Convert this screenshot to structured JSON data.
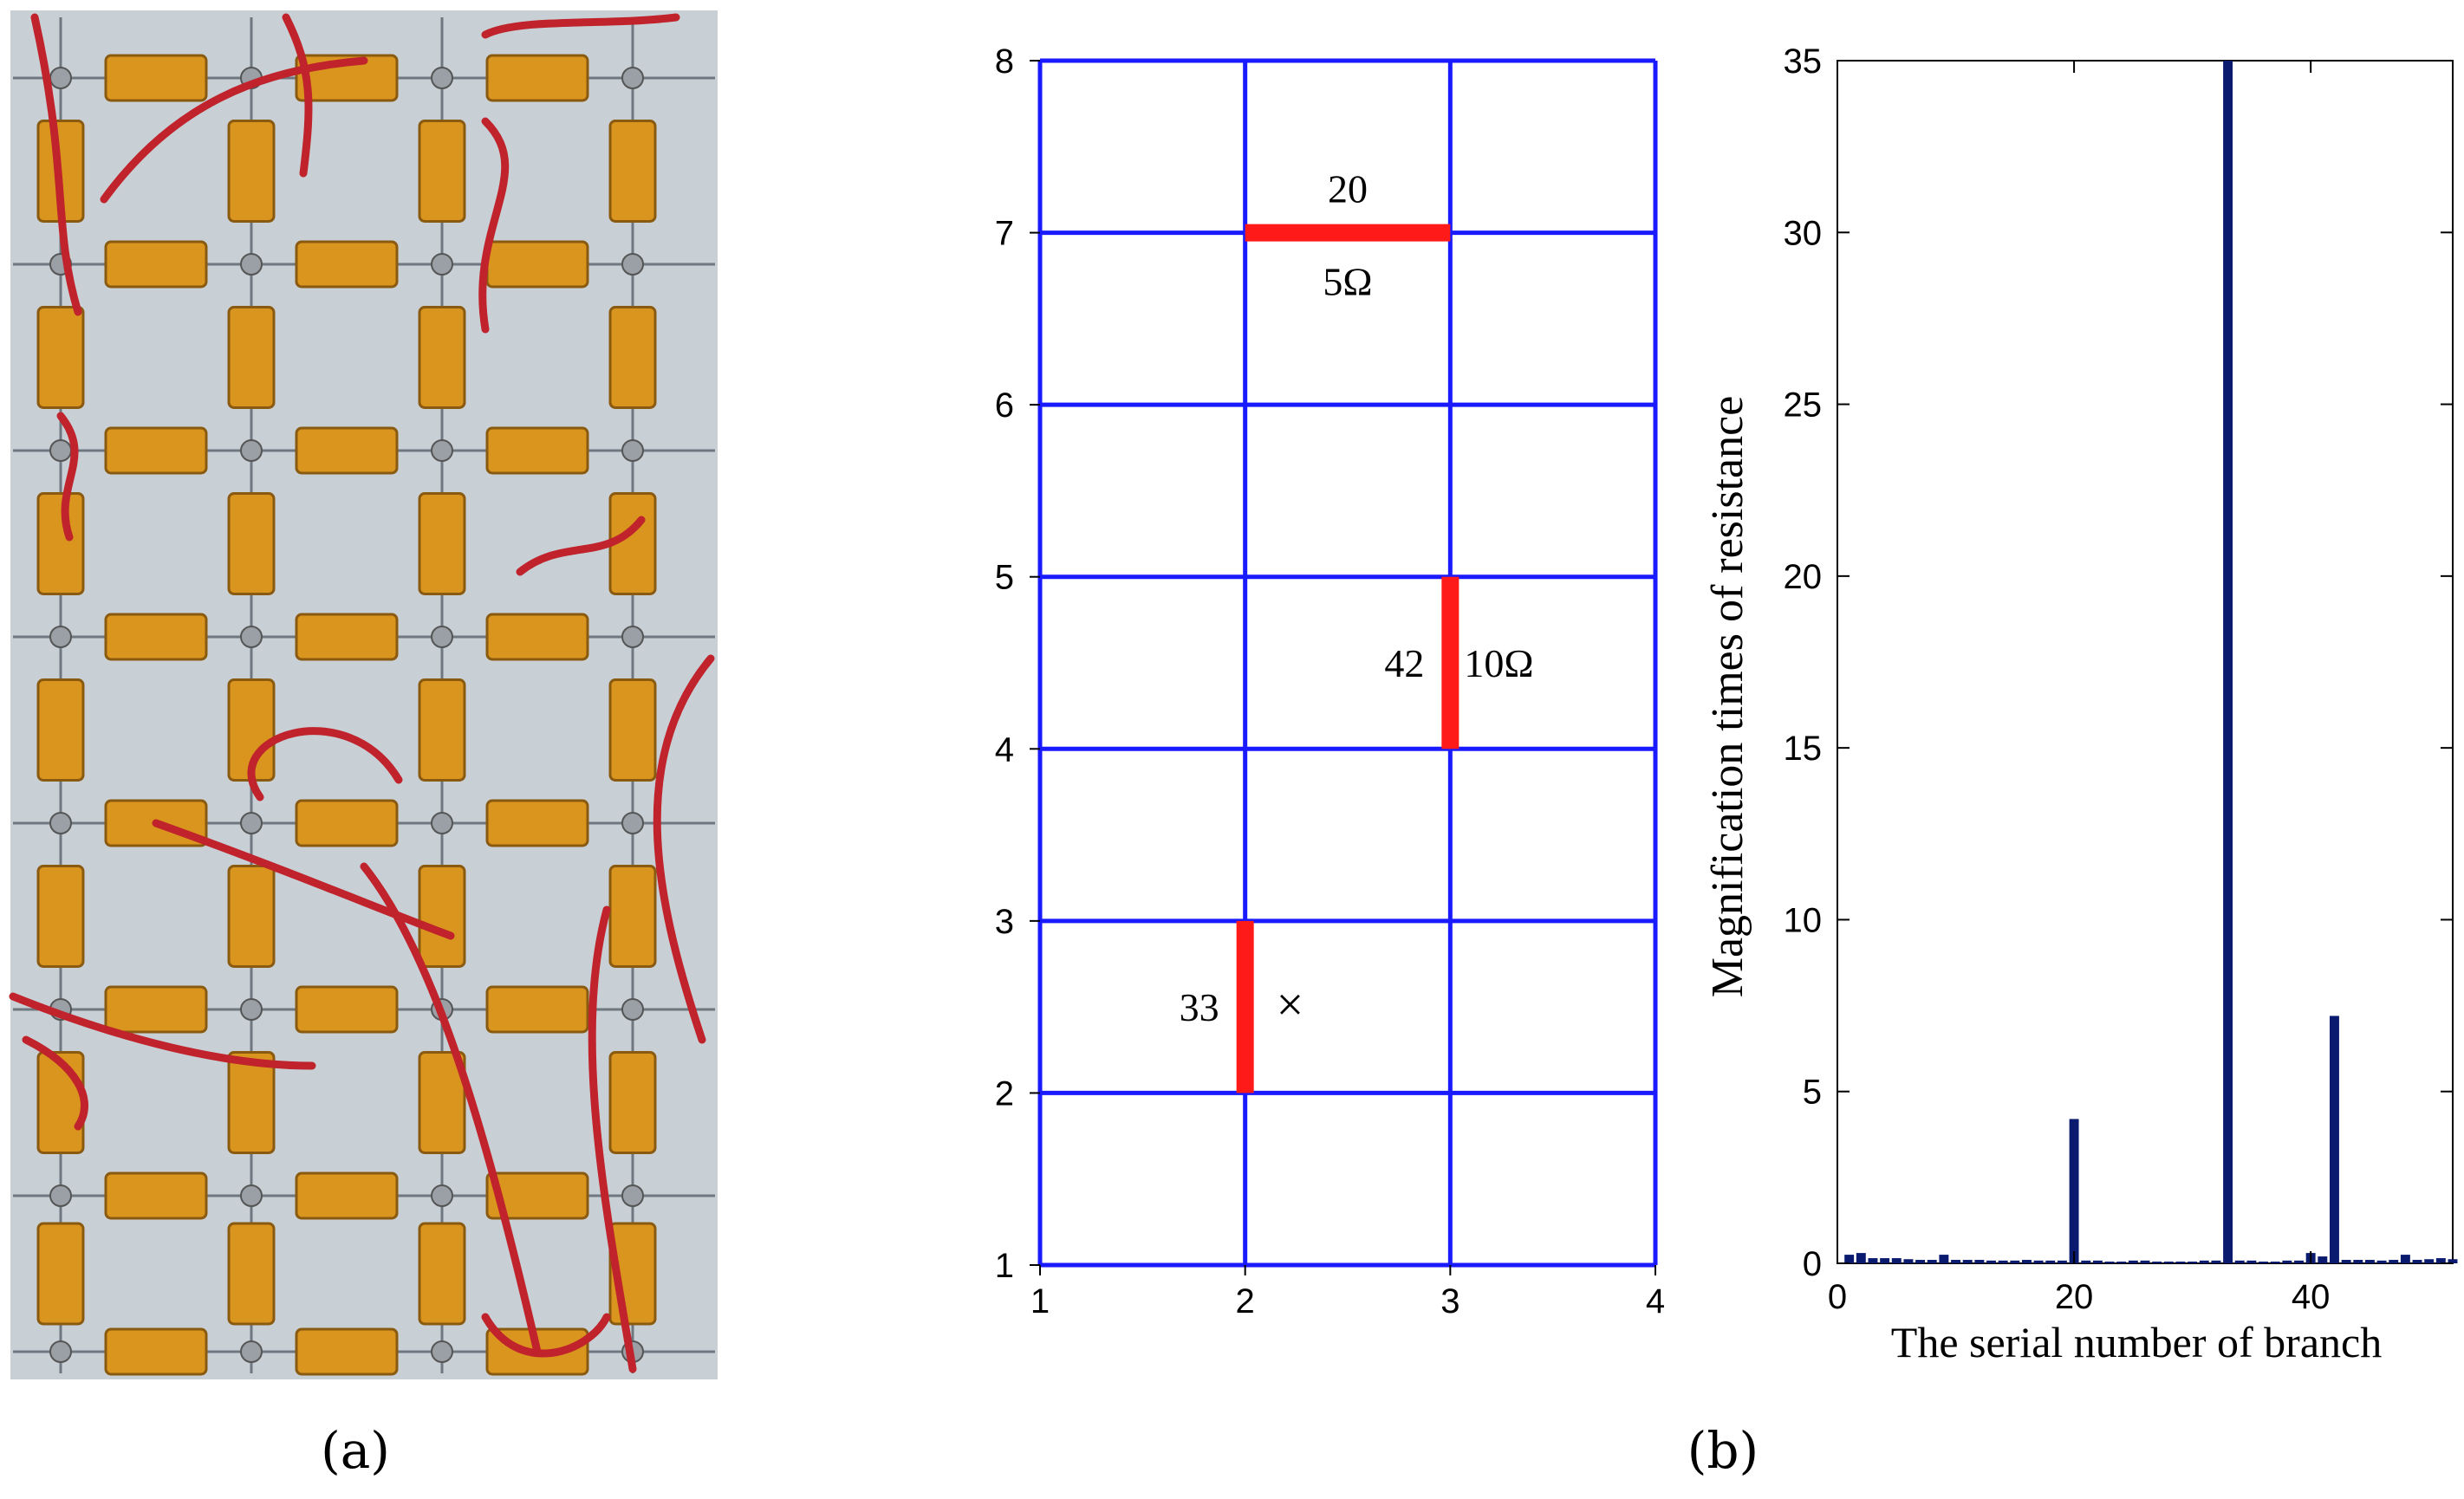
{
  "panel_labels": {
    "a": "(a)",
    "b": "(b)"
  },
  "photo": {
    "background": "#c8d0d6",
    "resistor_color": "#d9951e",
    "wire_color": "#c0232b"
  },
  "chart_data": [
    {
      "type": "network_grid",
      "xlim": [
        1,
        4
      ],
      "ylim": [
        1,
        8
      ],
      "x_ticks": [
        1,
        2,
        3,
        4
      ],
      "y_ticks": [
        1,
        2,
        3,
        4,
        5,
        6,
        7,
        8
      ],
      "grid_color": "#1a1aff",
      "highlight_color": "#ff1a1a",
      "highlighted_branches": [
        {
          "from": [
            2,
            7
          ],
          "to": [
            3,
            7
          ],
          "branch": "20",
          "value": "5Ω"
        },
        {
          "from": [
            3,
            4
          ],
          "to": [
            3,
            5
          ],
          "branch": "42",
          "value": "10Ω"
        },
        {
          "from": [
            2,
            2
          ],
          "to": [
            2,
            3
          ],
          "branch": "33",
          "value": "×"
        }
      ]
    },
    {
      "type": "bar",
      "xlabel": "The serial number of branch",
      "ylabel": "Magnification times of resistance",
      "xlim": [
        0,
        52
      ],
      "ylim": [
        0,
        35
      ],
      "x_ticks": [
        0,
        20,
        40
      ],
      "y_ticks": [
        0,
        5,
        10,
        15,
        20,
        25,
        30,
        35
      ],
      "bar_color": "#0a1a6e",
      "x": [
        1,
        2,
        3,
        4,
        5,
        6,
        7,
        8,
        9,
        10,
        11,
        12,
        13,
        14,
        15,
        16,
        17,
        18,
        19,
        20,
        21,
        22,
        23,
        24,
        25,
        26,
        27,
        28,
        29,
        30,
        31,
        32,
        33,
        34,
        35,
        36,
        37,
        38,
        39,
        40,
        41,
        42,
        43,
        44,
        45,
        46,
        47,
        48,
        49,
        50,
        51,
        52
      ],
      "values": [
        0.25,
        0.3,
        0.15,
        0.15,
        0.15,
        0.12,
        0.1,
        0.1,
        0.25,
        0.1,
        0.1,
        0.1,
        0.08,
        0.08,
        0.08,
        0.1,
        0.08,
        0.08,
        0.08,
        4.2,
        0.08,
        0.08,
        0.05,
        0.05,
        0.08,
        0.08,
        0.05,
        0.05,
        0.05,
        0.05,
        0.08,
        0.08,
        35,
        0.08,
        0.08,
        0.05,
        0.05,
        0.08,
        0.08,
        0.3,
        0.2,
        7.2,
        0.1,
        0.1,
        0.1,
        0.08,
        0.1,
        0.25,
        0.1,
        0.12,
        0.15,
        0.12
      ]
    }
  ]
}
